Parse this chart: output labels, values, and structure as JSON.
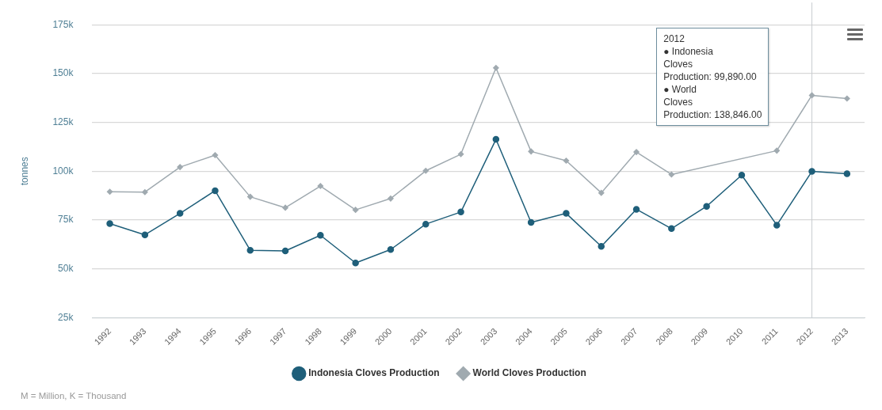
{
  "chart_data": {
    "type": "line",
    "ylabel": "tonnes",
    "categories": [
      "1992",
      "1993",
      "1994",
      "1995",
      "1996",
      "1997",
      "1998",
      "1999",
      "2000",
      "2001",
      "2002",
      "2003",
      "2004",
      "2005",
      "2006",
      "2007",
      "2008",
      "2009",
      "2010",
      "2011",
      "2012",
      "2013"
    ],
    "series": [
      {
        "name": "Indonesia Cloves Production",
        "color": "#1f5f7a",
        "marker": "circle",
        "values": [
          73200,
          67400,
          78400,
          90000,
          59500,
          59200,
          67200,
          53000,
          59900,
          72900,
          79100,
          116300,
          73800,
          78400,
          61500,
          80500,
          70600,
          82000,
          98000,
          72400,
          99890,
          98700
        ]
      },
      {
        "name": "World Cloves Production",
        "color": "#a0aab0",
        "marker": "diamond",
        "values": [
          89500,
          89300,
          102100,
          108200,
          86900,
          81300,
          92400,
          80200,
          86000,
          100200,
          108700,
          152900,
          110100,
          105400,
          88900,
          109800,
          98300,
          null,
          null,
          110500,
          138846,
          137200
        ]
      }
    ],
    "ylim": [
      25000,
      175000
    ],
    "yticks": [
      {
        "value": 25000,
        "label": "25k"
      },
      {
        "value": 50000,
        "label": "50k"
      },
      {
        "value": 75000,
        "label": "75k"
      },
      {
        "value": 100000,
        "label": "100k"
      },
      {
        "value": 125000,
        "label": "125k"
      },
      {
        "value": 150000,
        "label": "150k"
      },
      {
        "value": 175000,
        "label": "175k"
      }
    ],
    "grid": "y",
    "legend": "bottom",
    "ref_lines": [
      {
        "axis": "x",
        "value": "2012",
        "color": "#c8ccd0"
      }
    ],
    "annotations": [
      "2012\n● Indonesia\nCloves\nProduction: 99,890.00\n● World\nCloves\nProduction: 138,846.00",
      "M = Million, K = Thousand"
    ]
  }
}
